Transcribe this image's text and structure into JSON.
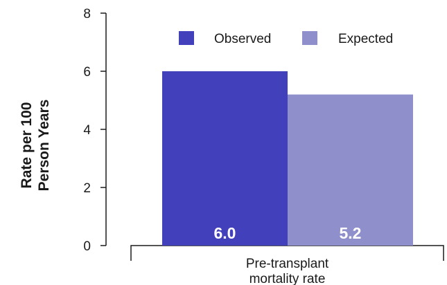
{
  "chart_data": {
    "type": "bar",
    "categories": [
      "Pre-transplant mortality rate"
    ],
    "category_lines": [
      "Pre-transplant",
      "mortality rate"
    ],
    "series": [
      {
        "name": "Observed",
        "values": [
          6.0
        ],
        "value_labels": [
          "6.0"
        ],
        "color": "#4340bc"
      },
      {
        "name": "Expected",
        "values": [
          5.2
        ],
        "value_labels": [
          "5.2"
        ],
        "color": "#8f8fcc"
      }
    ],
    "title": "",
    "xlabel": "",
    "ylabel_lines": [
      "Rate per 100",
      "Person Years"
    ],
    "ylim": [
      0,
      8
    ],
    "yticks": [
      0,
      2,
      4,
      6,
      8
    ],
    "grid": false,
    "legend_position": "top"
  }
}
